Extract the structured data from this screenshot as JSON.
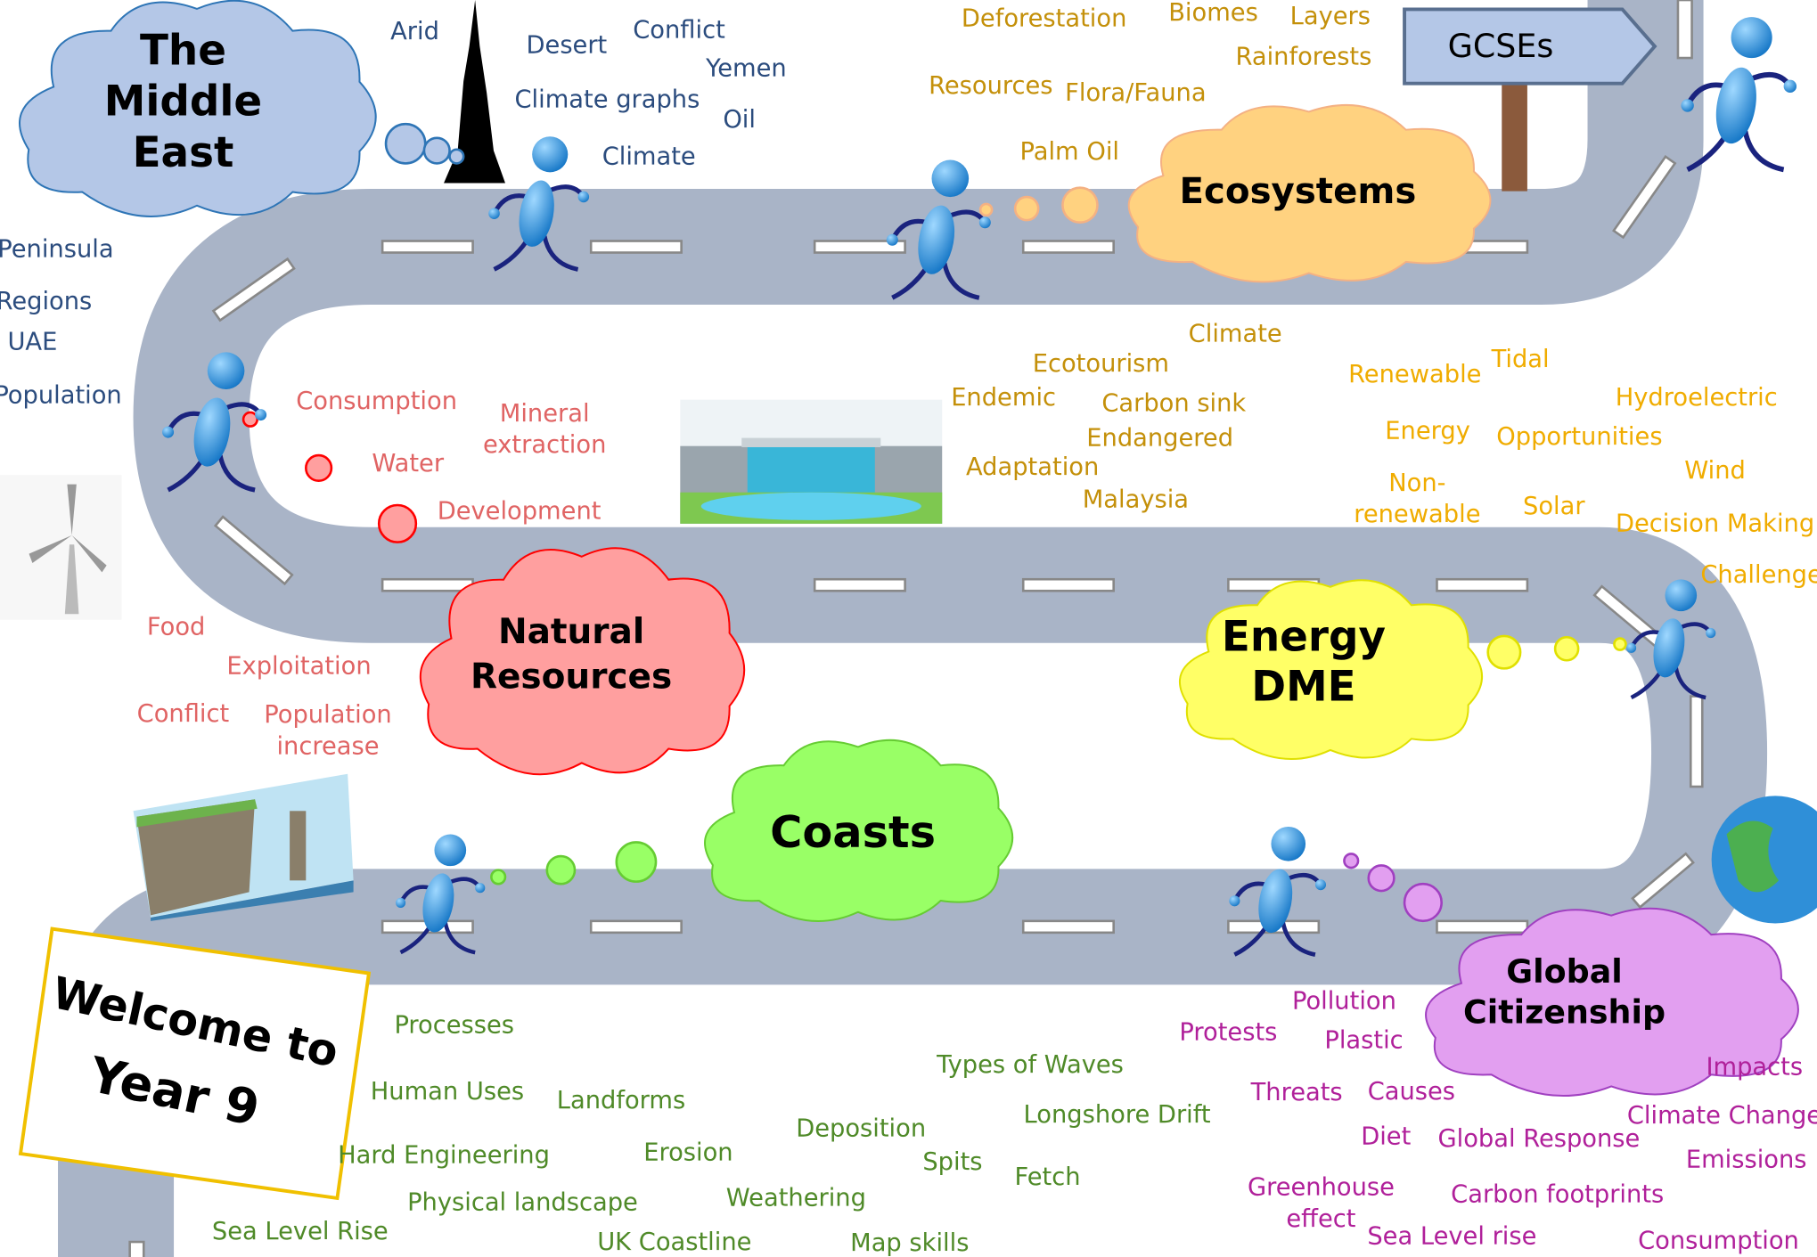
{
  "sign": "GCSEs",
  "welcome": [
    "Welcome to",
    "Year 9"
  ],
  "topics": [
    {
      "title": [
        "The",
        "Middle",
        "East"
      ],
      "keywords": [
        "Arid",
        "Desert",
        "Conflict",
        "Yemen",
        "Climate graphs",
        "Oil",
        "Climate",
        "Peninsula",
        "Regions",
        "UAE",
        "Population"
      ]
    },
    {
      "title": [
        "Ecosystems"
      ],
      "keywords": [
        "Deforestation",
        "Biomes",
        "Layers",
        "Rainforests",
        "Resources",
        "Flora/Fauna",
        "Palm Oil",
        "Climate",
        "Ecotourism",
        "Endemic",
        "Carbon sink",
        "Endangered",
        "Adaptation",
        "Malaysia"
      ]
    },
    {
      "title": [
        "Natural",
        "Resources"
      ],
      "keywords": [
        "Consumption",
        [
          "Mineral",
          "extraction"
        ],
        "Water",
        "Development",
        "Food",
        "Exploitation",
        "Conflict",
        [
          "Population",
          "increase"
        ]
      ]
    },
    {
      "title": [
        "Energy",
        "DME"
      ],
      "keywords": [
        "Renewable",
        "Tidal",
        "Hydroelectric",
        "Energy",
        "Opportunities",
        "Wind",
        [
          "Non-",
          "renewable"
        ],
        "Solar",
        "Decision Making",
        "Challenge"
      ]
    },
    {
      "title": [
        "Coasts"
      ],
      "keywords": [
        "Processes",
        "Human Uses",
        "Landforms",
        "Types of Waves",
        "Longshore Drift",
        "Deposition",
        "Hard Engineering",
        "Erosion",
        "Spits",
        "Fetch",
        "Physical landscape",
        "Weathering",
        "Sea Level Rise",
        "UK Coastline",
        "Map skills"
      ]
    },
    {
      "title": [
        "Global",
        "Citizenship"
      ],
      "keywords": [
        "Pollution",
        "Protests",
        "Plastic",
        "Impacts",
        "Threats",
        "Causes",
        "Climate Change",
        "Diet",
        "Global Response",
        "Emissions",
        [
          "Greenhouse",
          "effect"
        ],
        "Carbon footprints",
        "Sea Level rise",
        "Consumption"
      ]
    }
  ]
}
